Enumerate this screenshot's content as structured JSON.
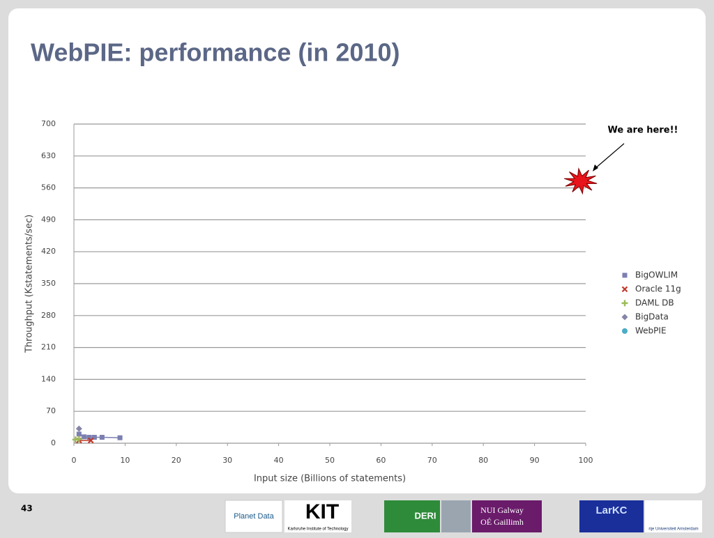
{
  "chart_data": {
    "type": "line",
    "title": "WebPIE: performance (in 2010)",
    "x_label": "Input size (Billions of statements)",
    "y_label": "Throughput (Kstatements/sec)",
    "xlim": [
      0,
      100
    ],
    "xticks": [
      0,
      10,
      20,
      30,
      40,
      50,
      60,
      70,
      80,
      90,
      100
    ],
    "ylim": [
      0,
      700
    ],
    "yticks": [
      0,
      70,
      140,
      210,
      280,
      350,
      420,
      490,
      560,
      630,
      700
    ],
    "grid": true,
    "legend": "right",
    "series": [
      {
        "name": "BigOWLIM",
        "color": "#7b7fb0",
        "marker": "square",
        "x": [
          1,
          2,
          3,
          4,
          5.5,
          9
        ],
        "values": [
          20,
          14,
          13,
          13,
          13,
          12
        ]
      },
      {
        "name": "Oracle 11g",
        "color": "#c0392b",
        "marker": "cross",
        "x": [
          1,
          3.3
        ],
        "values": [
          6,
          6
        ]
      },
      {
        "name": "DAML DB",
        "color": "#9bbb59",
        "marker": "plus",
        "x": [
          0.3,
          1
        ],
        "values": [
          8,
          9
        ]
      },
      {
        "name": "BigData",
        "color": "#8585a8",
        "marker": "diamond",
        "x": [
          1
        ],
        "values": [
          32
        ]
      },
      {
        "name": "WebPIE",
        "color": "#4bacc6",
        "marker": "circle",
        "x": [],
        "values": []
      }
    ],
    "annotation": {
      "text": "We are here!!",
      "x": 99,
      "y": 575
    }
  },
  "footer": {
    "slide_number": "43",
    "logos": [
      "Planet Data",
      "KIT",
      "Karlsruhe Institute of Technology",
      "DERI",
      "NUI Galway",
      "OÉ Gaillimh",
      "LarKC",
      "rije Universiteit Amsterdam"
    ]
  }
}
